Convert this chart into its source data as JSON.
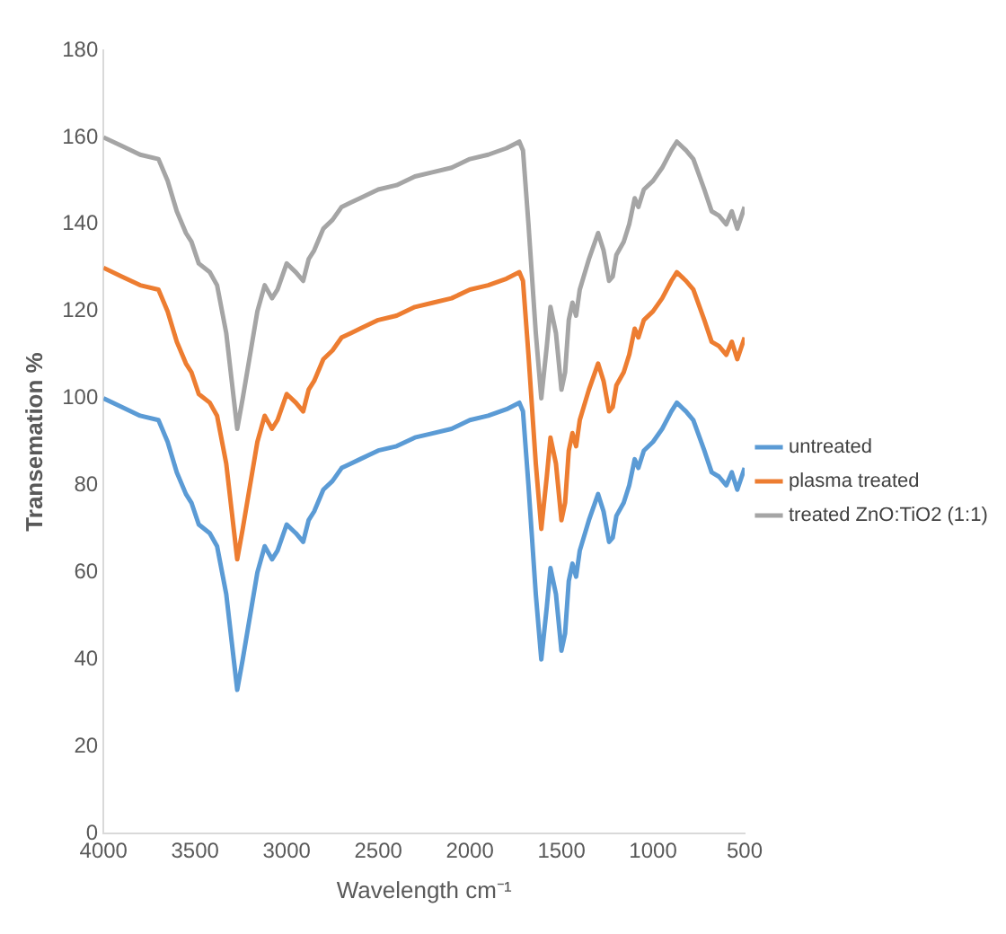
{
  "chart_data": {
    "type": "line",
    "xlabel": "Wavelength cm⁻¹",
    "ylabel": "Transemation %",
    "x": [
      4000,
      3900,
      3800,
      3700,
      3650,
      3600,
      3550,
      3520,
      3480,
      3420,
      3380,
      3330,
      3300,
      3270,
      3240,
      3200,
      3160,
      3120,
      3080,
      3050,
      3000,
      2950,
      2910,
      2880,
      2850,
      2800,
      2750,
      2700,
      2650,
      2600,
      2500,
      2400,
      2300,
      2200,
      2100,
      2000,
      1900,
      1800,
      1730,
      1710,
      1680,
      1640,
      1610,
      1580,
      1560,
      1530,
      1500,
      1480,
      1460,
      1440,
      1420,
      1400,
      1350,
      1300,
      1270,
      1240,
      1220,
      1200,
      1160,
      1130,
      1100,
      1080,
      1050,
      1000,
      950,
      900,
      870,
      820,
      780,
      720,
      680,
      640,
      600,
      570,
      540,
      500
    ],
    "series": [
      {
        "name": "untreated",
        "color": "#5b9bd5",
        "values": [
          100,
          98,
          96,
          95,
          90,
          83,
          78,
          76,
          71,
          69,
          66,
          55,
          44,
          33,
          40,
          50,
          60,
          66,
          63,
          65,
          71,
          69,
          67,
          72,
          74,
          79,
          81,
          84,
          85,
          86,
          88,
          89,
          91,
          92,
          93,
          95,
          96,
          97.5,
          99,
          97,
          80,
          55,
          40,
          52,
          61,
          55,
          42,
          46,
          58,
          62,
          59,
          65,
          72,
          78,
          74,
          67,
          68,
          73,
          76,
          80,
          86,
          84,
          88,
          90,
          93,
          97,
          99,
          97,
          95,
          88,
          83,
          82,
          80,
          83,
          79,
          84
        ]
      },
      {
        "name": "plasma treated",
        "color": "#ed7d31",
        "values": [
          130,
          128,
          126,
          125,
          120,
          113,
          108,
          106,
          101,
          99,
          96,
          85,
          74,
          63,
          70,
          80,
          90,
          96,
          93,
          95,
          101,
          99,
          97,
          102,
          104,
          109,
          111,
          114,
          115,
          116,
          118,
          119,
          121,
          122,
          123,
          125,
          126,
          127.5,
          129,
          127,
          110,
          85,
          70,
          82,
          91,
          85,
          72,
          76,
          88,
          92,
          89,
          95,
          102,
          108,
          104,
          97,
          98,
          103,
          106,
          110,
          116,
          114,
          118,
          120,
          123,
          127,
          129,
          127,
          125,
          118,
          113,
          112,
          110,
          113,
          109,
          114
        ]
      },
      {
        "name": "treated ZnO:TiO2 (1:1)",
        "color": "#a5a5a5",
        "values": [
          160,
          158,
          156,
          155,
          150,
          143,
          138,
          136,
          131,
          129,
          126,
          115,
          104,
          93,
          100,
          110,
          120,
          126,
          123,
          125,
          131,
          129,
          127,
          132,
          134,
          139,
          141,
          144,
          145,
          146,
          148,
          149,
          151,
          152,
          153,
          155,
          156,
          157.5,
          159,
          157,
          140,
          115,
          100,
          112,
          121,
          115,
          102,
          106,
          118,
          122,
          119,
          125,
          132,
          138,
          134,
          127,
          128,
          133,
          136,
          140,
          146,
          144,
          148,
          150,
          153,
          157,
          159,
          157,
          155,
          148,
          143,
          142,
          140,
          143,
          139,
          144
        ]
      }
    ],
    "xlim": [
      4000,
      500
    ],
    "xticks": [
      4000,
      3500,
      3000,
      2500,
      2000,
      1500,
      1000,
      500
    ],
    "ylim": [
      0,
      180
    ],
    "yticks": [
      0,
      20,
      40,
      60,
      80,
      100,
      120,
      140,
      160,
      180
    ],
    "grid": false,
    "legend": "right",
    "marker": "none",
    "line_style": "solid"
  }
}
